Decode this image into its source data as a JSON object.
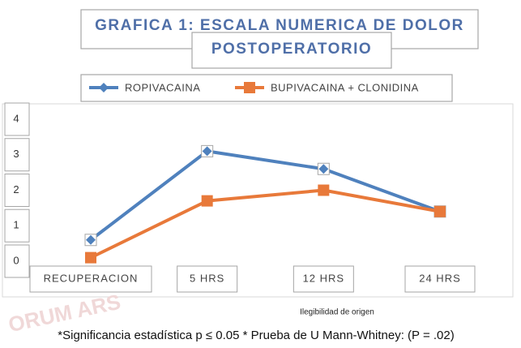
{
  "chart_data": {
    "type": "line",
    "title": "GRAFICA 1: ESCALA NUMERICA DE DOLOR",
    "subtitle": "POSTOPERATORIO",
    "categories": [
      "RECUPERACION",
      "5 HRS",
      "12 HRS",
      "24 HRS"
    ],
    "series": [
      {
        "name": "ROPIVACAINA",
        "color": "#4f81bd",
        "marker": "diamond",
        "values": [
          0.6,
          3.1,
          2.6,
          1.4
        ]
      },
      {
        "name": "BUPIVACAINA + CLONIDINA",
        "color": "#e8793a",
        "marker": "square",
        "values": [
          0.1,
          1.7,
          2.0,
          1.4
        ]
      }
    ],
    "ylim": [
      0,
      4
    ],
    "yticks": [
      0,
      1,
      2,
      3,
      4
    ],
    "watermark": "ORUM ARS",
    "note": "Ilegibilidad de origen",
    "footnote": "*Significancia estadística p ≤ 0.05  * Prueba de U Mann-Whitney: (P = .02)"
  }
}
